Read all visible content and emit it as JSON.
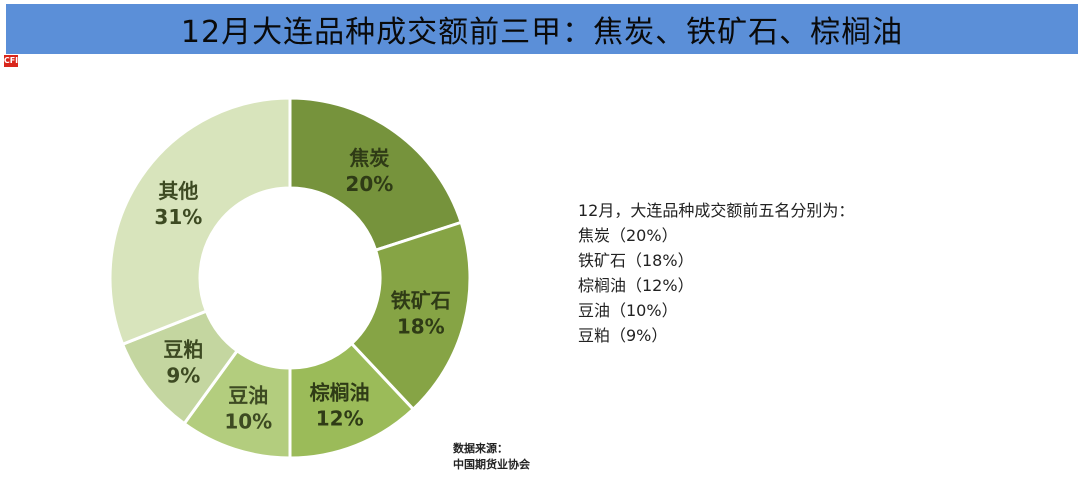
{
  "title": "12月大连品种成交额前三甲：焦炭、铁矿石、棕榈油",
  "logo_text": "CFI",
  "chart_data": {
    "type": "pie",
    "donut": true,
    "slices": [
      {
        "name": "焦炭",
        "value": 20,
        "label": "20%",
        "color": "#76933c"
      },
      {
        "name": "铁矿石",
        "value": 18,
        "label": "18%",
        "color": "#86a445"
      },
      {
        "name": "棕榈油",
        "value": 12,
        "label": "12%",
        "color": "#9bbb59"
      },
      {
        "name": "豆油",
        "value": 10,
        "label": "10%",
        "color": "#b3cd7e"
      },
      {
        "name": "豆粕",
        "value": 9,
        "label": "9%",
        "color": "#c4d6a0"
      },
      {
        "name": "其他",
        "value": 31,
        "label": "31%",
        "color": "#d8e4bc"
      }
    ]
  },
  "summary": {
    "heading": "12月，大连品种成交额前五名分别为：",
    "items": [
      "焦炭（20%）",
      "铁矿石（18%）",
      "棕榈油（12%）",
      "豆油（10%）",
      "豆粕（9%）"
    ]
  },
  "source": {
    "label": "数据来源：",
    "value": "中国期货业协会"
  }
}
